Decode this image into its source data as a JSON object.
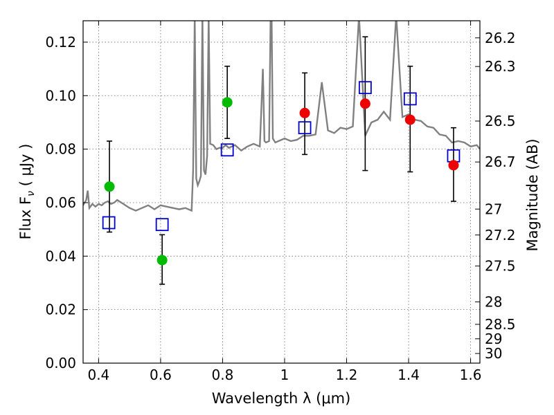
{
  "chart_data": {
    "type": "scatter",
    "xlabel": "Wavelength  λ (μm)",
    "ylabel": "Flux  F",
    "ylabel_sub": "ν",
    "ylabel_unit": " ( μJy )",
    "y2label": "Magnitude (AB)",
    "xlim": [
      0.35,
      1.63
    ],
    "ylim": [
      0.0,
      0.128
    ],
    "grid": true,
    "x_ticks": [
      0.4,
      0.6,
      0.8,
      1.0,
      1.2,
      1.4,
      1.6
    ],
    "x_tick_labels": [
      "0.4",
      "0.6",
      "0.8",
      "1",
      "1.2",
      "1.4",
      "1.6"
    ],
    "y_ticks": [
      0.0,
      0.02,
      0.04,
      0.06,
      0.08,
      0.1,
      0.12
    ],
    "y_tick_labels": [
      "0.00",
      "0.02",
      "0.04",
      "0.06",
      "0.08",
      "0.10",
      "0.12"
    ],
    "y2_ticks": [
      {
        "label": "26.2",
        "flux": 0.1216
      },
      {
        "label": "26.3",
        "flux": 0.1109
      },
      {
        "label": "26.5",
        "flux": 0.0905
      },
      {
        "label": "26.7",
        "flux": 0.0752
      },
      {
        "label": "27",
        "flux": 0.0576
      },
      {
        "label": "27.2",
        "flux": 0.0479
      },
      {
        "label": "27.5",
        "flux": 0.0363
      },
      {
        "label": "28",
        "flux": 0.0229
      },
      {
        "label": "28.5",
        "flux": 0.0145
      },
      {
        "label": "29",
        "flux": 0.0091
      },
      {
        "label": "30",
        "flux": 0.0036
      }
    ],
    "colors": {
      "spectrum": "#808080",
      "green_points": "#00bb00",
      "red_points": "#ee0000",
      "model_squares": "#0000cc",
      "errorbars": "#000000"
    },
    "green_points": {
      "x": [
        0.435,
        0.605,
        0.815
      ],
      "y": [
        0.066,
        0.0385,
        0.0975
      ]
    },
    "red_points": {
      "x": [
        1.065,
        1.26,
        1.405,
        1.545
      ],
      "y": [
        0.0935,
        0.097,
        0.091,
        0.074
      ]
    },
    "errorbars": {
      "x": [
        0.435,
        0.605,
        0.815,
        1.065,
        1.26,
        1.405,
        1.545
      ],
      "low": [
        0.049,
        0.0295,
        0.084,
        0.078,
        0.072,
        0.0715,
        0.0605
      ],
      "high": [
        0.083,
        0.048,
        0.111,
        0.1085,
        0.122,
        0.111,
        0.088
      ]
    },
    "model_squares": {
      "x": [
        0.433,
        0.605,
        0.815,
        1.065,
        1.26,
        1.405,
        1.545
      ],
      "y": [
        0.0525,
        0.0518,
        0.0797,
        0.088,
        0.103,
        0.0988,
        0.0775
      ]
    },
    "spectrum": {
      "x": [
        0.35,
        0.36,
        0.365,
        0.37,
        0.38,
        0.39,
        0.4,
        0.41,
        0.42,
        0.43,
        0.44,
        0.45,
        0.46,
        0.48,
        0.5,
        0.52,
        0.54,
        0.56,
        0.58,
        0.6,
        0.62,
        0.64,
        0.66,
        0.68,
        0.7,
        0.705,
        0.71,
        0.715,
        0.72,
        0.725,
        0.73,
        0.735,
        0.74,
        0.745,
        0.75,
        0.755,
        0.76,
        0.77,
        0.78,
        0.79,
        0.8,
        0.81,
        0.82,
        0.84,
        0.86,
        0.88,
        0.9,
        0.92,
        0.925,
        0.93,
        0.935,
        0.94,
        0.95,
        0.955,
        0.958,
        0.962,
        0.97,
        1.0,
        1.02,
        1.04,
        1.06,
        1.08,
        1.1,
        1.12,
        1.14,
        1.16,
        1.18,
        1.2,
        1.22,
        1.24,
        1.26,
        1.28,
        1.3,
        1.32,
        1.34,
        1.36,
        1.38,
        1.4,
        1.42,
        1.44,
        1.46,
        1.48,
        1.5,
        1.52,
        1.54,
        1.56,
        1.58,
        1.6,
        1.62,
        1.63
      ],
      "y": [
        0.059,
        0.061,
        0.0645,
        0.058,
        0.0595,
        0.0585,
        0.0595,
        0.059,
        0.06,
        0.0605,
        0.0595,
        0.06,
        0.061,
        0.0595,
        0.058,
        0.057,
        0.058,
        0.059,
        0.0575,
        0.059,
        0.0585,
        0.058,
        0.0575,
        0.058,
        0.057,
        0.072,
        0.13,
        0.069,
        0.0665,
        0.068,
        0.07,
        0.13,
        0.072,
        0.0705,
        0.0775,
        0.13,
        0.082,
        0.0815,
        0.08,
        0.0805,
        0.0805,
        0.0815,
        0.0805,
        0.0815,
        0.0795,
        0.081,
        0.082,
        0.081,
        0.095,
        0.11,
        0.083,
        0.0825,
        0.083,
        0.13,
        0.13,
        0.084,
        0.0825,
        0.084,
        0.083,
        0.0835,
        0.085,
        0.085,
        0.0855,
        0.105,
        0.087,
        0.086,
        0.088,
        0.0875,
        0.0885,
        0.13,
        0.085,
        0.09,
        0.091,
        0.094,
        0.091,
        0.13,
        0.092,
        0.093,
        0.091,
        0.0905,
        0.0885,
        0.088,
        0.0855,
        0.085,
        0.0825,
        0.083,
        0.0825,
        0.081,
        0.0815,
        0.08
      ]
    }
  }
}
